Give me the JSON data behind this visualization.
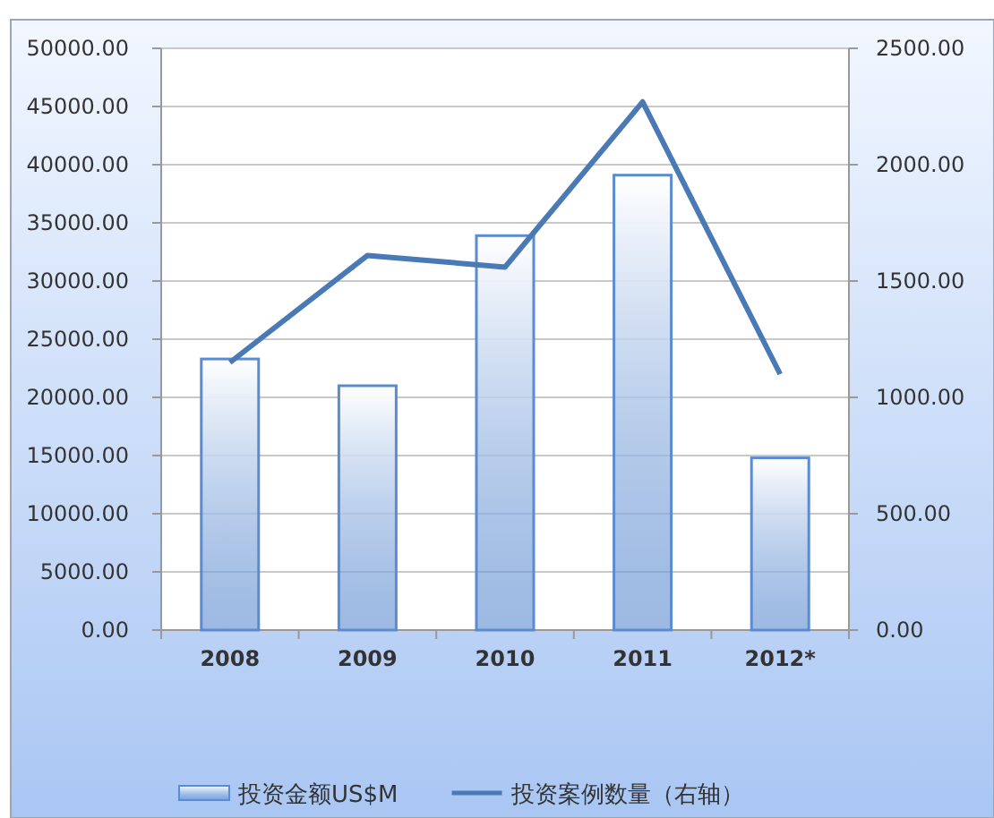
{
  "chart_data": {
    "type": "bar",
    "categories": [
      "2008",
      "2009",
      "2010",
      "2011",
      "2012*"
    ],
    "series": [
      {
        "name": "投资金额US$M",
        "color": "#5b8bd0",
        "values": [
          23300,
          21000,
          33900,
          39100,
          14800
        ]
      },
      {
        "name": "投资案例数量（右轴）",
        "type": "line",
        "axis": "y2",
        "color": "#4a7ab5",
        "values": [
          1150,
          1610,
          1560,
          2270,
          1100
        ]
      }
    ],
    "ylim": [
      0,
      50000
    ],
    "yticks": [
      {
        "value": 0,
        "label": "0.00"
      },
      {
        "value": 5000,
        "label": "5000.00"
      },
      {
        "value": 10000,
        "label": "10000.00"
      },
      {
        "value": 15000,
        "label": "15000.00"
      },
      {
        "value": 20000,
        "label": "20000.00"
      },
      {
        "value": 25000,
        "label": "25000.00"
      },
      {
        "value": 30000,
        "label": "30000.00"
      },
      {
        "value": 35000,
        "label": "35000.00"
      },
      {
        "value": 40000,
        "label": "40000.00"
      },
      {
        "value": 45000,
        "label": "45000.00"
      },
      {
        "value": 50000,
        "label": "50000.00"
      }
    ],
    "y2lim": [
      0,
      2500
    ],
    "y2ticks": [
      {
        "value": 0,
        "label": "0.00"
      },
      {
        "value": 500,
        "label": "500.00"
      },
      {
        "value": 1000,
        "label": "1000.00"
      },
      {
        "value": 1500,
        "label": "1500.00"
      },
      {
        "value": 2000,
        "label": "2000.00"
      },
      {
        "value": 2500,
        "label": "2500.00"
      }
    ],
    "grid": "y",
    "legend": "bottom"
  }
}
